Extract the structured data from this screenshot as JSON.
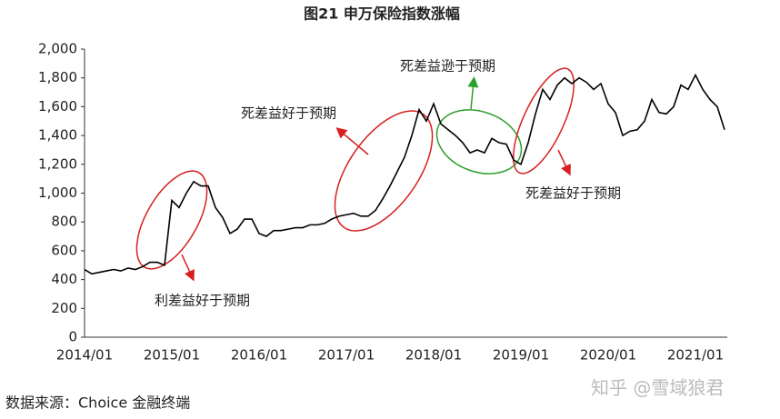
{
  "chart_data": {
    "type": "line",
    "title": "图21  申万保险指数涨幅",
    "categories": [
      "2014/01",
      null,
      null,
      null,
      null,
      null,
      null,
      null,
      null,
      null,
      null,
      null,
      "2015/01",
      null,
      null,
      null,
      null,
      null,
      null,
      null,
      null,
      null,
      null,
      null,
      "2016/01",
      null,
      null,
      null,
      null,
      null,
      null,
      null,
      null,
      null,
      null,
      null,
      "2017/01",
      null,
      null,
      null,
      null,
      null,
      null,
      null,
      null,
      null,
      null,
      null,
      "2018/01",
      null,
      null,
      null,
      null,
      null,
      null,
      null,
      null,
      null,
      null,
      null,
      "2019/01",
      null,
      null,
      null,
      null,
      null,
      null,
      null,
      null,
      null,
      null,
      null,
      "2020/01",
      null,
      null,
      null,
      null,
      null,
      null,
      null,
      null,
      null,
      null,
      null,
      "2021/01",
      null,
      null,
      null,
      null
    ],
    "series": [
      {
        "name": "申万保险指数",
        "color": "#000000",
        "values": [
          470,
          440,
          450,
          460,
          470,
          460,
          480,
          470,
          490,
          520,
          520,
          500,
          950,
          900,
          1000,
          1080,
          1050,
          1050,
          900,
          830,
          720,
          750,
          820,
          820,
          720,
          700,
          740,
          740,
          750,
          760,
          760,
          780,
          780,
          790,
          820,
          840,
          850,
          860,
          840,
          840,
          880,
          960,
          1050,
          1150,
          1250,
          1400,
          1580,
          1500,
          1620,
          1480,
          1440,
          1400,
          1350,
          1280,
          1300,
          1280,
          1380,
          1350,
          1340,
          1230,
          1200,
          1350,
          1550,
          1720,
          1650,
          1750,
          1800,
          1760,
          1800,
          1770,
          1720,
          1760,
          1620,
          1560,
          1400,
          1430,
          1440,
          1500,
          1650,
          1560,
          1550,
          1600,
          1750,
          1720,
          1820,
          1720,
          1650,
          1600,
          1440
        ]
      }
    ],
    "ylim": [
      0,
      2000
    ],
    "yticks": [
      0,
      200,
      400,
      600,
      800,
      {
        "value": 1000,
        "label": "1,000"
      },
      {
        "value": 1200,
        "label": "1,200"
      },
      {
        "value": 1400,
        "label": "1,400"
      },
      {
        "value": 1600,
        "label": "1,600"
      },
      {
        "value": 1800,
        "label": "1,800"
      },
      {
        "value": 2000,
        "label": "2,000"
      }
    ],
    "annotations": [
      "利差益好于预期",
      "死差益好于预期",
      "死差益逊于预期",
      "死差益好于预期"
    ]
  },
  "source": "数据来源：Choice 金融终端",
  "watermark": "知乎 @雪域狼君"
}
